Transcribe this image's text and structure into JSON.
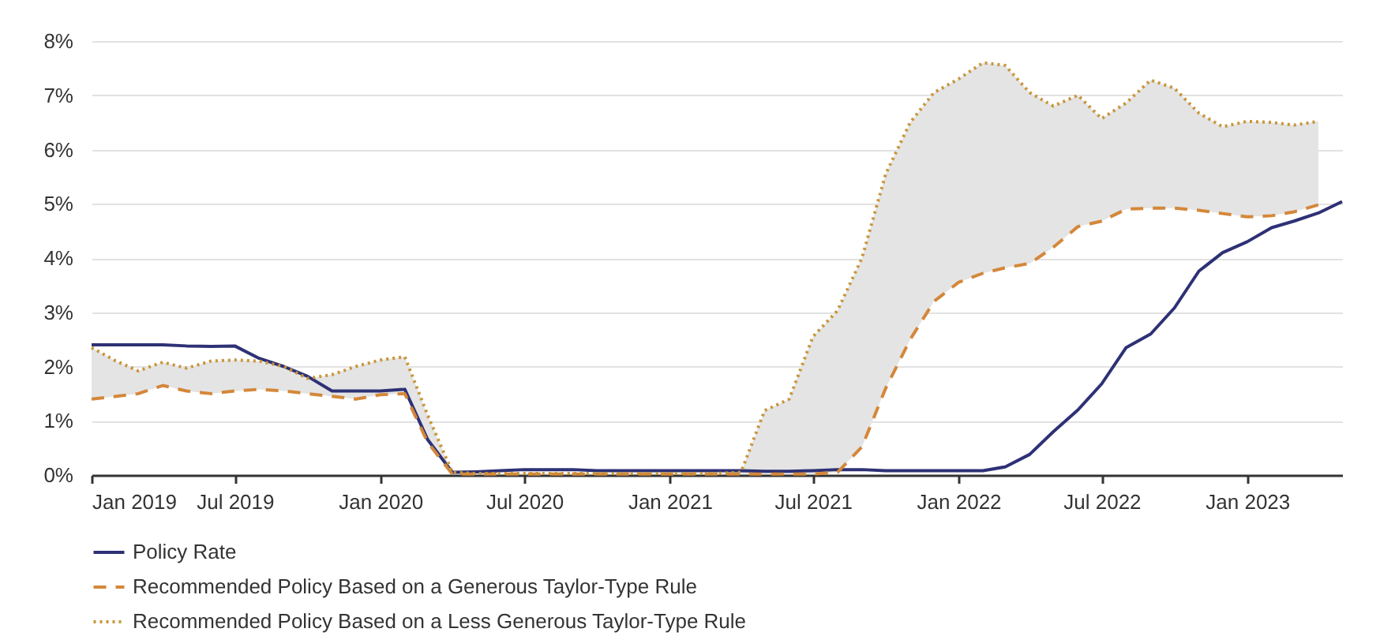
{
  "chart_data": {
    "type": "line",
    "x": [
      "2019-01",
      "2019-02",
      "2019-03",
      "2019-04",
      "2019-05",
      "2019-06",
      "2019-07",
      "2019-08",
      "2019-09",
      "2019-10",
      "2019-11",
      "2019-12",
      "2020-01",
      "2020-02",
      "2020-03",
      "2020-04",
      "2020-05",
      "2020-06",
      "2020-07",
      "2020-08",
      "2020-09",
      "2020-10",
      "2020-11",
      "2020-12",
      "2021-01",
      "2021-02",
      "2021-03",
      "2021-04",
      "2021-05",
      "2021-06",
      "2021-07",
      "2021-08",
      "2021-09",
      "2021-10",
      "2021-11",
      "2021-12",
      "2022-01",
      "2022-02",
      "2022-03",
      "2022-04",
      "2022-05",
      "2022-06",
      "2022-07",
      "2022-08",
      "2022-09",
      "2022-10",
      "2022-11",
      "2022-12",
      "2023-01",
      "2023-02",
      "2023-03",
      "2023-04",
      "2023-05"
    ],
    "series": [
      {
        "name": "Policy Rate",
        "color": "#2e3175",
        "line_style": "solid",
        "values": [
          2.4,
          2.4,
          2.4,
          2.4,
          2.38,
          2.37,
          2.38,
          2.15,
          2.0,
          1.82,
          1.55,
          1.55,
          1.55,
          1.58,
          0.65,
          0.05,
          0.06,
          0.08,
          0.1,
          0.1,
          0.1,
          0.08,
          0.08,
          0.08,
          0.08,
          0.08,
          0.08,
          0.08,
          0.07,
          0.07,
          0.08,
          0.1,
          0.1,
          0.08,
          0.08,
          0.08,
          0.08,
          0.08,
          0.15,
          0.38,
          0.8,
          1.2,
          1.68,
          2.35,
          2.6,
          3.08,
          3.76,
          4.1,
          4.3,
          4.56,
          4.68,
          4.83,
          5.04
        ]
      },
      {
        "name": "Recommended Policy Based on a Generous Taylor-Type Rule",
        "color": "#d4873a",
        "line_style": "dashed",
        "values": [
          1.4,
          1.45,
          1.5,
          1.65,
          1.55,
          1.5,
          1.55,
          1.58,
          1.55,
          1.5,
          1.45,
          1.4,
          1.48,
          1.5,
          0.6,
          0.02,
          0.02,
          0.02,
          0.02,
          0.02,
          0.02,
          0.02,
          0.02,
          0.02,
          0.02,
          0.02,
          0.02,
          0.02,
          0.02,
          0.02,
          0.02,
          0.05,
          0.52,
          1.6,
          2.5,
          3.2,
          3.55,
          3.72,
          3.82,
          3.9,
          4.2,
          4.58,
          4.68,
          4.9,
          4.92,
          4.92,
          4.88,
          4.82,
          4.76,
          4.78,
          4.85,
          4.98,
          null
        ]
      },
      {
        "name": "Recommended Policy Based on a Less Generous Taylor-Type Rule",
        "color": "#c8963c",
        "line_style": "dotted",
        "values": [
          2.35,
          2.1,
          1.92,
          2.08,
          1.97,
          2.1,
          2.12,
          2.1,
          2.0,
          1.78,
          1.85,
          2.0,
          2.12,
          2.18,
          1.1,
          0.05,
          0.03,
          0.03,
          0.03,
          0.03,
          0.03,
          0.03,
          0.03,
          0.03,
          0.03,
          0.03,
          0.03,
          0.05,
          1.19,
          1.4,
          2.55,
          3.03,
          4.0,
          5.55,
          6.5,
          7.05,
          7.3,
          7.6,
          7.55,
          7.05,
          6.8,
          7.0,
          6.57,
          6.86,
          7.28,
          7.13,
          6.67,
          6.42,
          6.52,
          6.5,
          6.45,
          6.52,
          null
        ],
        "lower": [
          1.4,
          1.45,
          1.5,
          1.65,
          1.55,
          1.5,
          1.55,
          1.58,
          1.55,
          1.5,
          1.45,
          1.4,
          1.48,
          1.5,
          0.6,
          0.02,
          0.02,
          0.02,
          0.02,
          0.02,
          0.02,
          0.02,
          0.02,
          0.02,
          0.02,
          0.02,
          0.02,
          0.02,
          0.02,
          0.02,
          0.02,
          0.05,
          0.52,
          1.6,
          2.5,
          3.2,
          3.55,
          3.72,
          3.82,
          3.9,
          4.2,
          4.58,
          4.68,
          4.9,
          4.92,
          4.92,
          4.88,
          4.82,
          4.76,
          4.78,
          4.85,
          4.98,
          null
        ],
        "upper": [
          2.35,
          2.1,
          1.92,
          2.08,
          1.97,
          2.1,
          2.12,
          2.1,
          2.0,
          1.78,
          1.85,
          2.0,
          2.12,
          2.18,
          1.1,
          0.05,
          0.03,
          0.03,
          0.03,
          0.03,
          0.03,
          0.03,
          0.03,
          0.03,
          0.03,
          0.03,
          0.03,
          0.05,
          1.19,
          1.4,
          2.55,
          3.03,
          4.0,
          5.55,
          6.5,
          7.05,
          7.3,
          7.6,
          7.55,
          7.05,
          6.8,
          7.0,
          6.57,
          6.86,
          7.28,
          7.13,
          6.67,
          6.42,
          6.52,
          6.5,
          6.45,
          6.52,
          null
        ]
      }
    ],
    "xlim": [
      "2019-01",
      "2023-05"
    ],
    "xticks": [
      {
        "value": "2019-01",
        "label": "Jan 2019"
      },
      {
        "value": "2019-07",
        "label": "Jul 2019"
      },
      {
        "value": "2020-01",
        "label": "Jan 2020"
      },
      {
        "value": "2020-07",
        "label": "Jul 2020"
      },
      {
        "value": "2021-01",
        "label": "Jan 2021"
      },
      {
        "value": "2021-07",
        "label": "Jul 2021"
      },
      {
        "value": "2022-01",
        "label": "Jan 2022"
      },
      {
        "value": "2022-07",
        "label": "Jul 2022"
      },
      {
        "value": "2023-01",
        "label": "Jan 2023"
      }
    ],
    "ylim": [
      0,
      8
    ],
    "yticks": [
      {
        "value": 0,
        "label": "0%"
      },
      {
        "value": 1,
        "label": "1%"
      },
      {
        "value": 2,
        "label": "2%"
      },
      {
        "value": 3,
        "label": "3%"
      },
      {
        "value": 4,
        "label": "4%"
      },
      {
        "value": 5,
        "label": "5%"
      },
      {
        "value": 6,
        "label": "6%"
      },
      {
        "value": 7,
        "label": "7%"
      },
      {
        "value": 8,
        "label": "8%"
      }
    ],
    "grid": "y",
    "legend": "bottom",
    "marker": "none"
  }
}
